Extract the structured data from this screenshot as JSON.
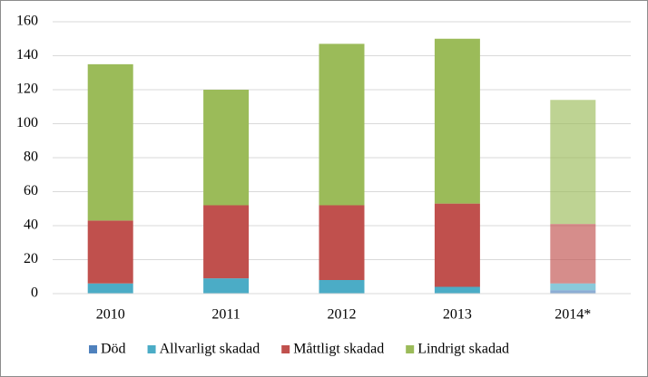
{
  "chart_data": {
    "type": "stacked-bar",
    "categories": [
      "2010",
      "2011",
      "2012",
      "2013",
      "2014*"
    ],
    "series": [
      {
        "name": "Död",
        "color": "#4f81bd",
        "values": [
          0,
          0,
          0,
          0,
          2
        ]
      },
      {
        "name": "Allvarligt skadad",
        "color": "#4bacc6",
        "values": [
          6,
          9,
          8,
          4,
          4
        ]
      },
      {
        "name": "Måttligt skadad",
        "color": "#c0504d",
        "values": [
          37,
          43,
          44,
          49,
          35
        ]
      },
      {
        "name": "Lindrigt skadad",
        "color": "#9bbb59",
        "values": [
          92,
          68,
          95,
          97,
          73
        ]
      }
    ],
    "ylim": [
      0,
      160
    ],
    "yticks": [
      0,
      20,
      40,
      60,
      80,
      100,
      120,
      140,
      160
    ],
    "grid": true,
    "legend": "bottom"
  }
}
